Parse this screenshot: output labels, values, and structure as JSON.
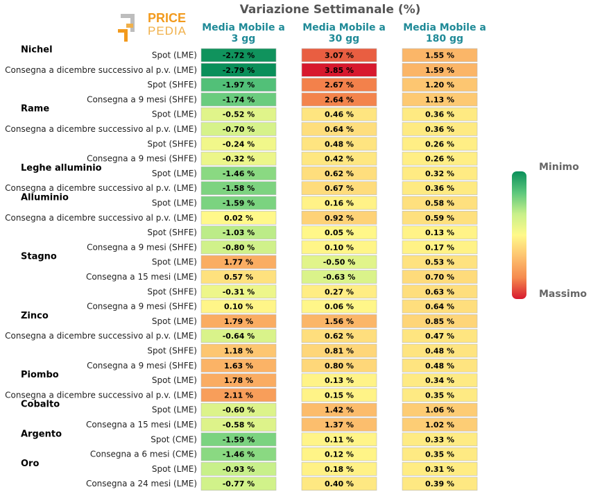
{
  "chart_data": {
    "type": "table",
    "title": "Variazione Settimanale (%)",
    "columns": [
      "Media Mobile a 3 gg",
      "Media Mobile a 30 gg",
      "Media Mobile a 180 gg"
    ],
    "column_lines": [
      [
        "Media Mobile a",
        "3 gg"
      ],
      [
        "Media Mobile a",
        "30 gg"
      ],
      [
        "Media Mobile a",
        "180 gg"
      ]
    ],
    "unit": "%",
    "groups": [
      {
        "name": "Nichel",
        "rows": [
          {
            "label": "Spot (LME)",
            "values": [
              -2.72,
              3.07,
              1.55
            ]
          },
          {
            "label": "Consegna a dicembre successivo al p.v. (LME)",
            "values": [
              -2.79,
              3.85,
              1.59
            ]
          },
          {
            "label": "Spot (SHFE)",
            "values": [
              -1.97,
              2.67,
              1.2
            ]
          },
          {
            "label": "Consegna a 9 mesi (SHFE)",
            "values": [
              -1.74,
              2.64,
              1.13
            ]
          }
        ]
      },
      {
        "name": "Rame",
        "rows": [
          {
            "label": "Spot (LME)",
            "values": [
              -0.52,
              0.46,
              0.36
            ]
          },
          {
            "label": "Consegna a dicembre successivo al p.v. (LME)",
            "values": [
              -0.7,
              0.64,
              0.36
            ]
          },
          {
            "label": "Spot (SHFE)",
            "values": [
              -0.24,
              0.48,
              0.26
            ]
          },
          {
            "label": "Consegna a 9 mesi (SHFE)",
            "values": [
              -0.32,
              0.42,
              0.26
            ]
          }
        ]
      },
      {
        "name": "Leghe alluminio",
        "rows": [
          {
            "label": "Spot (LME)",
            "values": [
              -1.46,
              0.62,
              0.32
            ]
          },
          {
            "label": "Consegna a dicembre successivo al p.v. (LME)",
            "values": [
              -1.58,
              0.67,
              0.36
            ]
          }
        ]
      },
      {
        "name": "Alluminio",
        "rows": [
          {
            "label": "Spot (LME)",
            "values": [
              -1.59,
              0.16,
              0.58
            ]
          },
          {
            "label": "Consegna a dicembre successivo al p.v. (LME)",
            "values": [
              0.02,
              0.92,
              0.59
            ]
          },
          {
            "label": "Spot (SHFE)",
            "values": [
              -1.03,
              0.05,
              0.13
            ]
          },
          {
            "label": "Consegna a 9 mesi (SHFE)",
            "values": [
              -0.8,
              0.1,
              0.17
            ]
          }
        ]
      },
      {
        "name": "Stagno",
        "rows": [
          {
            "label": "Spot (LME)",
            "values": [
              1.77,
              -0.5,
              0.53
            ]
          },
          {
            "label": "Consegna a 15 mesi (LME)",
            "values": [
              0.57,
              -0.63,
              0.7
            ]
          },
          {
            "label": "Spot (SHFE)",
            "values": [
              -0.31,
              0.27,
              0.63
            ]
          },
          {
            "label": "Consegna a 9 mesi (SHFE)",
            "values": [
              0.1,
              0.06,
              0.64
            ]
          }
        ]
      },
      {
        "name": "Zinco",
        "rows": [
          {
            "label": "Spot (LME)",
            "values": [
              1.79,
              1.56,
              0.85
            ]
          },
          {
            "label": "Consegna a dicembre successivo al p.v. (LME)",
            "values": [
              -0.64,
              0.62,
              0.47
            ]
          },
          {
            "label": "Spot (SHFE)",
            "values": [
              1.18,
              0.81,
              0.48
            ]
          },
          {
            "label": "Consegna a 9 mesi (SHFE)",
            "values": [
              1.63,
              0.8,
              0.48
            ]
          }
        ]
      },
      {
        "name": "Piombo",
        "rows": [
          {
            "label": "Spot (LME)",
            "values": [
              1.78,
              0.13,
              0.34
            ]
          },
          {
            "label": "Consegna a dicembre successivo al p.v. (LME)",
            "values": [
              2.11,
              0.15,
              0.35
            ]
          }
        ]
      },
      {
        "name": "Cobalto",
        "rows": [
          {
            "label": "Spot (LME)",
            "values": [
              -0.6,
              1.42,
              1.06
            ]
          },
          {
            "label": "Consegna a 15 mesi (LME)",
            "values": [
              -0.58,
              1.37,
              1.02
            ]
          }
        ]
      },
      {
        "name": "Argento",
        "rows": [
          {
            "label": "Spot (CME)",
            "values": [
              -1.59,
              0.11,
              0.33
            ]
          },
          {
            "label": "Consegna a 6 mesi (CME)",
            "values": [
              -1.46,
              0.12,
              0.35
            ]
          }
        ]
      },
      {
        "name": "Oro",
        "rows": [
          {
            "label": "Spot (LME)",
            "values": [
              -0.93,
              0.18,
              0.31
            ]
          },
          {
            "label": "Consegna a 24 mesi (LME)",
            "values": [
              -0.77,
              0.4,
              0.39
            ]
          }
        ]
      }
    ],
    "color_scale": {
      "min_label": "Minimo",
      "max_label": "Massimo",
      "min_value": -2.79,
      "max_value": 3.85,
      "stops": [
        "#0a8f5a",
        "#5cc77c",
        "#c8f08a",
        "#fff98a",
        "#fdc26f",
        "#f58a4e",
        "#d7192e"
      ]
    }
  },
  "logo": {
    "top": "PRICE",
    "bottom": "PEDIA",
    "color_primary": "#f29a1d",
    "color_secondary": "#f0b04a"
  },
  "colors": {
    "header": "#1f8a97",
    "title": "#555555",
    "group": "#000000",
    "label": "#222222",
    "legend_text": "#666666"
  }
}
